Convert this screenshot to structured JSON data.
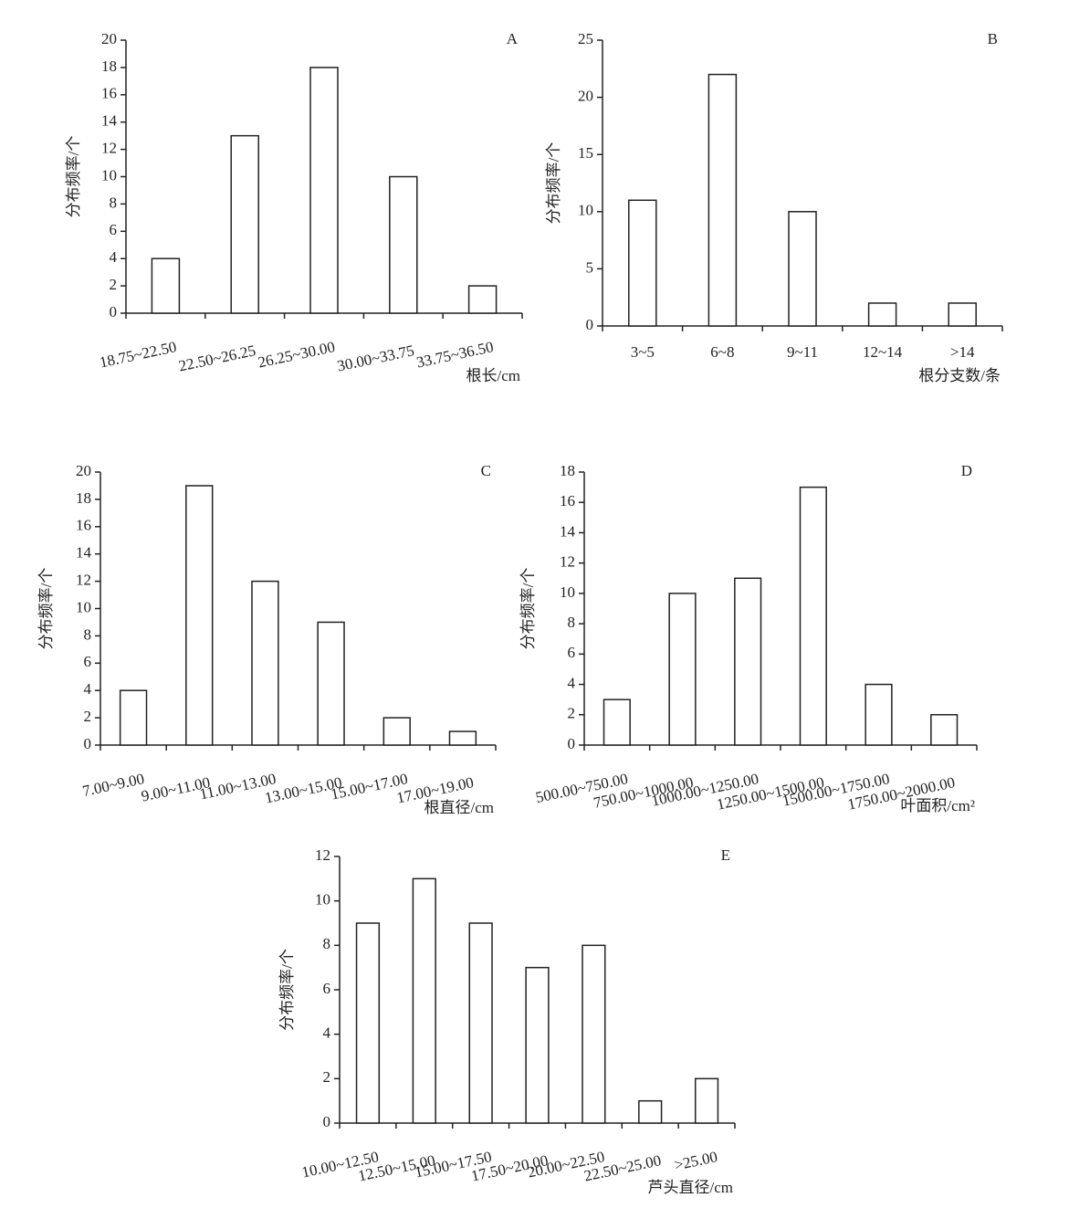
{
  "chart_data": [
    {
      "type": "bar",
      "panel": "A",
      "y_label": "分布频率/个",
      "x_label": "根长/cm",
      "categories": [
        "18.75~22.50",
        "22.50~26.25",
        "26.25~30.00",
        "30.00~33.75",
        "33.75~36.50"
      ],
      "values": [
        4,
        13,
        18,
        10,
        2
      ],
      "color": "#ffffff",
      "ylim": [
        0,
        20
      ],
      "yticks": [
        0,
        2,
        4,
        6,
        8,
        10,
        12,
        14,
        16,
        18,
        20
      ]
    },
    {
      "type": "bar",
      "panel": "B",
      "y_label": "分布频率/个",
      "x_label": "根分支数/条",
      "categories": [
        "3~5",
        "6~8",
        "9~11",
        "12~14",
        ">14"
      ],
      "values": [
        11,
        22,
        10,
        2,
        2
      ],
      "color": "#ffffff",
      "ylim": [
        0,
        25
      ],
      "yticks": [
        0,
        5,
        10,
        15,
        20,
        25
      ]
    },
    {
      "type": "bar",
      "panel": "C",
      "y_label": "分布频率/个",
      "x_label": "根直径/cm",
      "categories": [
        "7.00~9.00",
        "9.00~11.00",
        "11.00~13.00",
        "13.00~15.00",
        "15.00~17.00",
        "17.00~19.00"
      ],
      "values": [
        4,
        19,
        12,
        9,
        2,
        1
      ],
      "color": "#ffffff",
      "ylim": [
        0,
        20
      ],
      "yticks": [
        0,
        2,
        4,
        6,
        8,
        10,
        12,
        14,
        16,
        18,
        20
      ]
    },
    {
      "type": "bar",
      "panel": "D",
      "y_label": "分布频率/个",
      "x_label": "叶面积/cm²",
      "categories": [
        "500.00~750.00",
        "750.00~1000.00",
        "1000.00~1250.00",
        "1250.00~1500.00",
        "1500.00~1750.00",
        "1750.00~2000.00"
      ],
      "values": [
        3,
        10,
        11,
        17,
        4,
        2
      ],
      "color": "#ffffff",
      "ylim": [
        0,
        18
      ],
      "yticks": [
        0,
        2,
        4,
        6,
        8,
        10,
        12,
        14,
        16,
        18
      ]
    },
    {
      "type": "bar",
      "panel": "E",
      "y_label": "分布频率/个",
      "x_label": "芦头直径/cm",
      "categories": [
        "10.00~12.50",
        "12.50~15.00",
        "15.00~17.50",
        "17.50~20.00",
        "20.00~22.50",
        "22.50~25.00",
        ">25.00"
      ],
      "values": [
        9,
        11,
        9,
        7,
        8,
        1,
        2
      ],
      "color": "#ffffff",
      "ylim": [
        0,
        12
      ],
      "yticks": [
        0,
        2,
        4,
        6,
        8,
        10,
        12
      ]
    }
  ]
}
